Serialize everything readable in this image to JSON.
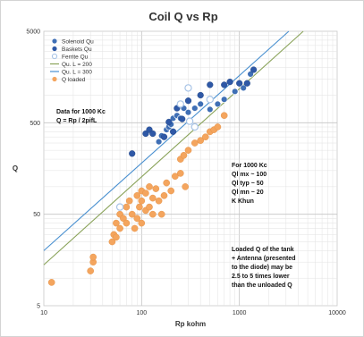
{
  "chart_data": {
    "type": "scatter",
    "title": "Coil Q vs Rp",
    "xlabel": "Rp kohm",
    "ylabel": "Q",
    "xscale": "log",
    "yscale": "log",
    "xlim": [
      10,
      10000
    ],
    "ylim": [
      5,
      5000
    ],
    "grid": true,
    "legend_position": "top-left",
    "x_ticks": [
      "10",
      "100",
      "1000",
      "10000"
    ],
    "y_ticks": [
      "5",
      "50",
      "500",
      "5000"
    ],
    "series": [
      {
        "name": "Solenoid Qu",
        "kind": "points",
        "marker": "filled-circle",
        "color": "#3f6fb5",
        "points": [
          [
            150,
            310
          ],
          [
            160,
            360
          ],
          [
            180,
            420
          ],
          [
            190,
            450
          ],
          [
            200,
            480
          ],
          [
            210,
            560
          ],
          [
            230,
            600
          ],
          [
            250,
            560
          ],
          [
            270,
            720
          ],
          [
            300,
            650
          ],
          [
            350,
            720
          ],
          [
            400,
            800
          ],
          [
            500,
            700
          ],
          [
            600,
            800
          ],
          [
            700,
            900
          ],
          [
            900,
            1100
          ],
          [
            1100,
            1200
          ],
          [
            1300,
            1700
          ]
        ]
      },
      {
        "name": "Baskets Qu",
        "kind": "points",
        "marker": "filled-circle-dark",
        "color": "#2e58a6",
        "points": [
          [
            80,
            230
          ],
          [
            110,
            380
          ],
          [
            120,
            420
          ],
          [
            130,
            380
          ],
          [
            170,
            350
          ],
          [
            190,
            510
          ],
          [
            210,
            400
          ],
          [
            230,
            720
          ],
          [
            260,
            550
          ],
          [
            300,
            870
          ],
          [
            400,
            1000
          ],
          [
            500,
            1300
          ],
          [
            700,
            1300
          ],
          [
            800,
            1400
          ],
          [
            1000,
            1350
          ],
          [
            1200,
            1350
          ],
          [
            1400,
            1900
          ]
        ]
      },
      {
        "name": "Ferrite Qu",
        "kind": "points",
        "marker": "open-circle",
        "color": "#a8c4e6",
        "points": [
          [
            60,
            60
          ],
          [
            250,
            800
          ],
          [
            300,
            1200
          ],
          [
            310,
            520
          ],
          [
            350,
            450
          ],
          [
            500,
            900
          ]
        ]
      },
      {
        "name": "Qu. L = 200",
        "kind": "line",
        "color": "#8aa35a",
        "points": [
          [
            10,
            14
          ],
          [
            4500,
            5000
          ]
        ]
      },
      {
        "name": "Qu. L = 300",
        "kind": "line",
        "color": "#4a90d0",
        "points": [
          [
            10,
            20
          ],
          [
            3200,
            5000
          ]
        ]
      },
      {
        "name": "Q loaded",
        "kind": "points",
        "marker": "filled-circle",
        "color": "#f4a55e",
        "points": [
          [
            12,
            9
          ],
          [
            30,
            12
          ],
          [
            32,
            15
          ],
          [
            32,
            17
          ],
          [
            50,
            25
          ],
          [
            52,
            30
          ],
          [
            55,
            28
          ],
          [
            55,
            40
          ],
          [
            60,
            35
          ],
          [
            60,
            50
          ],
          [
            65,
            45
          ],
          [
            70,
            40
          ],
          [
            70,
            60
          ],
          [
            75,
            70
          ],
          [
            80,
            50
          ],
          [
            85,
            35
          ],
          [
            90,
            45
          ],
          [
            90,
            80
          ],
          [
            95,
            60
          ],
          [
            100,
            40
          ],
          [
            100,
            70
          ],
          [
            100,
            90
          ],
          [
            110,
            55
          ],
          [
            110,
            85
          ],
          [
            120,
            60
          ],
          [
            120,
            100
          ],
          [
            130,
            50
          ],
          [
            130,
            75
          ],
          [
            140,
            95
          ],
          [
            150,
            70
          ],
          [
            160,
            50
          ],
          [
            170,
            80
          ],
          [
            180,
            110
          ],
          [
            200,
            90
          ],
          [
            220,
            130
          ],
          [
            250,
            140
          ],
          [
            250,
            200
          ],
          [
            270,
            220
          ],
          [
            280,
            100
          ],
          [
            300,
            250
          ],
          [
            350,
            300
          ],
          [
            400,
            320
          ],
          [
            450,
            350
          ],
          [
            500,
            400
          ],
          [
            550,
            420
          ],
          [
            600,
            450
          ],
          [
            700,
            600
          ]
        ]
      }
    ],
    "annotations": [
      [
        "Data for 1000 Kc",
        "Q = Rp / 2pifL"
      ],
      [
        "For 1000 Kc",
        "Ql mx ~ 100",
        "Ql typ ~ 50",
        "Ql mn ~ 20",
        "K Khun"
      ],
      [
        "Loaded Q of the tank",
        "+ Antenna (presented",
        "to the diode) may be",
        "2.5 to 5 times lower",
        "than the unloaded Q"
      ]
    ]
  }
}
